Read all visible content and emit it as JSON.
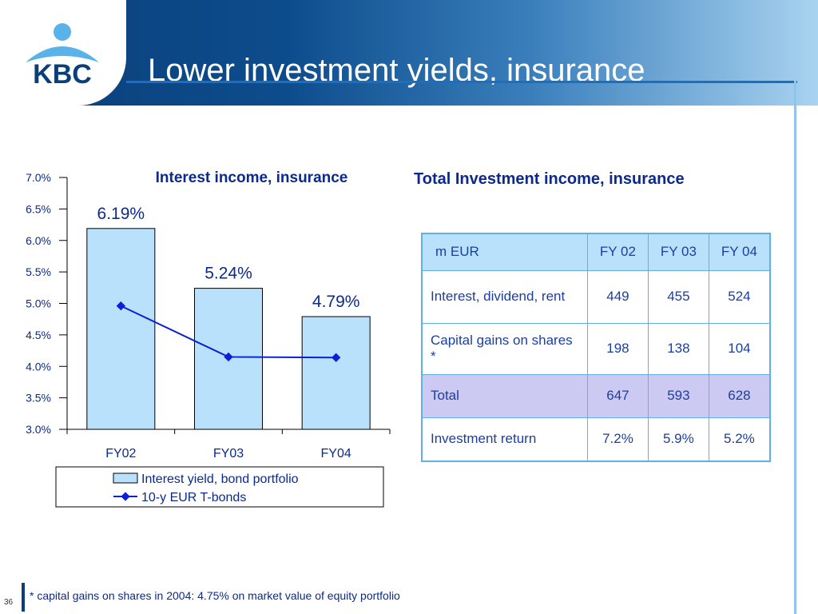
{
  "header": {
    "title": "Lower investment yields, insurance",
    "logo_text": "KBC",
    "brand_color": "#0b3f7a"
  },
  "chart_data": {
    "type": "bar",
    "title": "Interest income, insurance",
    "categories": [
      "FY02",
      "FY03",
      "FY04"
    ],
    "series": [
      {
        "name": "Interest yield, bond portfolio",
        "kind": "bar",
        "values": [
          6.19,
          5.24,
          4.79
        ],
        "labels": [
          "6.19%",
          "5.24%",
          "4.79%"
        ],
        "color": "#b9e1fb"
      },
      {
        "name": "10-y EUR T-bonds",
        "kind": "line",
        "values": [
          4.96,
          4.15,
          4.14
        ],
        "color": "#0a1fd6"
      }
    ],
    "ylim": [
      3.0,
      7.0
    ],
    "yticks": [
      "3.0%",
      "3.5%",
      "4.0%",
      "4.5%",
      "5.0%",
      "5.5%",
      "6.0%",
      "6.5%",
      "7.0%"
    ],
    "legend": "bottom"
  },
  "table": {
    "title": "Total Investment income, insurance",
    "headers": [
      "m EUR",
      "FY 02",
      "FY 03",
      "FY 04"
    ],
    "rows": [
      {
        "label": "Interest, dividend, rent",
        "values": [
          "449",
          "455",
          "524"
        ]
      },
      {
        "label": "Capital gains on shares *",
        "values": [
          "198",
          "138",
          "104"
        ]
      },
      {
        "label": "Total",
        "values": [
          "647",
          "593",
          "628"
        ]
      },
      {
        "label": "Investment return",
        "values": [
          "7.2%",
          "5.9%",
          "5.2%"
        ]
      }
    ]
  },
  "footer": {
    "note": "* capital gains on shares in 2004: 4.75% on market value of equity portfolio",
    "page": "36"
  }
}
